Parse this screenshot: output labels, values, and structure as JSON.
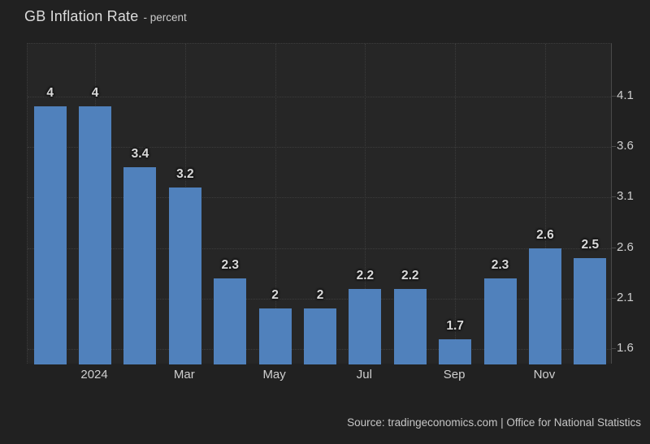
{
  "header": {
    "title": "GB Inflation Rate",
    "subtitle": "- percent"
  },
  "source_line": "Source: tradingeconomics.com | Office for National Statistics",
  "colors": {
    "page_background": "#212121",
    "plot_background": "#262626",
    "bar": "#5081bc",
    "grid": "#3c3c3c",
    "axis_line": "#4a4a4a",
    "label_text": "#d9d9d9",
    "tick_text": "#cfcfcf"
  },
  "chart_data": {
    "type": "bar",
    "title": "GB Inflation Rate",
    "ylabel": "percent",
    "values": [
      4,
      4,
      3.4,
      3.2,
      2.3,
      2,
      2,
      2.2,
      2.2,
      1.7,
      2.3,
      2.6,
      2.5
    ],
    "bar_labels": [
      "4",
      "4",
      "3.4",
      "3.2",
      "2.3",
      "2",
      "2",
      "2.2",
      "2.2",
      "1.7",
      "2.3",
      "2.6",
      "2.5"
    ],
    "x_ticks": [
      {
        "label": "2024",
        "bar_index": 1
      },
      {
        "label": "Mar",
        "bar_index": 3
      },
      {
        "label": "May",
        "bar_index": 5
      },
      {
        "label": "Jul",
        "bar_index": 7
      },
      {
        "label": "Sep",
        "bar_index": 9
      },
      {
        "label": "Nov",
        "bar_index": 11
      }
    ],
    "y_ticks": [
      4.1,
      3.6,
      3.1,
      2.6,
      2.1,
      1.6
    ],
    "y_tick_labels": [
      "4.1",
      "3.6",
      "3.1",
      "2.6",
      "2.1",
      "1.6"
    ],
    "ylim": [
      1.45,
      4.62
    ],
    "grid": true,
    "legend_position": "none"
  }
}
